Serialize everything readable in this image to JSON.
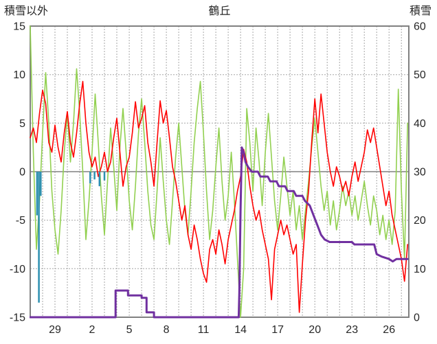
{
  "title": "鶴丘",
  "chart_data": {
    "type": "line",
    "title": "鶴丘",
    "left_axis": {
      "title": "積雪以外",
      "min": -15,
      "max": 15,
      "ticks": [
        15,
        10,
        5,
        0,
        -5,
        -10,
        -15
      ]
    },
    "right_axis": {
      "title": "積雪",
      "min": 0,
      "max": 60,
      "ticks": [
        60,
        50,
        40,
        30,
        20,
        10,
        0
      ]
    },
    "x_axis": {
      "min": 0,
      "max": 30.6,
      "gridline_every_days": 1,
      "tick_positions": [
        2,
        5,
        8,
        11,
        14,
        17,
        20,
        23,
        26,
        29
      ],
      "tick_labels": [
        "29",
        "2",
        "5",
        "8",
        "11",
        "14",
        "17",
        "20",
        "23",
        "26"
      ]
    },
    "colors": {
      "red": "#FF0000",
      "green": "#92D050",
      "purple": "#7030A0",
      "blue": "#2D8FB0",
      "grid": "#A6A6A6",
      "axis": "#808080",
      "text": "#262626"
    },
    "series": [
      {
        "id": "green_line",
        "axis": "left",
        "color_key": "green",
        "width": 1.6,
        "x_start": 0,
        "x_step": 0.25,
        "values": [
          15.0,
          2.0,
          -8.0,
          -3.0,
          4.0,
          10.2,
          5.0,
          -2.0,
          -6.0,
          -8.5,
          -4.0,
          2.0,
          6.0,
          1.0,
          5.0,
          10.6,
          6.0,
          0.0,
          -7.0,
          -3.0,
          2.0,
          8.0,
          3.0,
          -2.5,
          -6.5,
          -1.0,
          4.5,
          0.5,
          -4.0,
          2.5,
          6.5,
          2.0,
          -3.0,
          -6.0,
          -1.5,
          4.0,
          7.5,
          3.0,
          -2.0,
          -5.5,
          -7.0,
          -2.0,
          3.5,
          -1.0,
          -5.0,
          -7.5,
          -3.0,
          1.5,
          5.0,
          0.5,
          -4.0,
          -6.5,
          -2.0,
          3.0,
          6.5,
          9.3,
          4.0,
          -2.0,
          -7.0,
          -4.0,
          0.5,
          4.5,
          -1.0,
          -5.0,
          -2.5,
          2.0,
          -3.0,
          -9.0,
          -15.0,
          -10.0,
          6.5,
          3.0,
          -2.0,
          4.5,
          1.0,
          -3.5,
          2.0,
          6.0,
          1.5,
          -3.0,
          -6.0,
          -2.5,
          1.5,
          -1.5,
          -4.5,
          -2.0,
          -6.0,
          -3.5,
          -7.0,
          -4.0,
          -1.0,
          2.5,
          5.5,
          2.0,
          -1.5,
          -4.0,
          -2.0,
          -5.5,
          -3.0,
          -6.0,
          -4.0,
          -1.5,
          -3.5,
          -2.0,
          -4.5,
          -2.5,
          -5.0,
          -3.0,
          -1.0,
          -3.5,
          -5.5,
          -2.5,
          -4.0,
          -6.5,
          -4.5,
          -7.0,
          -5.0,
          -7.5,
          -4.0,
          8.5,
          -2.0,
          -9.0,
          5.0
        ]
      },
      {
        "id": "red_line",
        "axis": "left",
        "color_key": "red",
        "width": 1.6,
        "x_start": 0,
        "x_step": 0.25,
        "values": [
          3.5,
          4.5,
          3.0,
          6.0,
          8.4,
          7.0,
          3.0,
          2.0,
          4.8,
          2.5,
          1.0,
          4.0,
          6.2,
          3.0,
          1.5,
          4.0,
          7.0,
          9.3,
          5.0,
          2.0,
          0.5,
          1.5,
          -0.5,
          0.5,
          2.0,
          0.0,
          1.0,
          3.5,
          5.5,
          2.0,
          -1.5,
          0.5,
          1.5,
          4.0,
          7.2,
          4.5,
          5.5,
          6.8,
          3.0,
          1.0,
          -1.5,
          3.0,
          7.3,
          5.0,
          6.3,
          3.5,
          0.5,
          -1.0,
          -3.0,
          -5.0,
          -3.5,
          -6.5,
          -8.0,
          -5.5,
          -7.0,
          -9.0,
          -10.5,
          -11.4,
          -8.0,
          -7.0,
          -8.5,
          -6.0,
          -7.5,
          -9.5,
          -7.0,
          -5.5,
          -4.0,
          -2.0,
          -0.5,
          2.3,
          1.0,
          -1.5,
          -3.5,
          -5.0,
          -4.0,
          -6.0,
          -7.5,
          -9.0,
          -13.2,
          -8.0,
          -6.5,
          -5.0,
          -6.5,
          -5.5,
          -7.0,
          -8.5,
          -7.5,
          -14.5,
          -9.5,
          -5.0,
          -2.0,
          3.0,
          7.5,
          4.0,
          8.0,
          5.0,
          2.0,
          0.0,
          -1.5,
          0.5,
          -0.5,
          -2.0,
          -1.0,
          -2.5,
          -0.5,
          1.0,
          -1.0,
          0.5,
          2.0,
          4.3,
          3.0,
          4.5,
          2.5,
          0.5,
          -1.5,
          -3.5,
          -2.0,
          -4.5,
          -6.0,
          -7.5,
          -9.0,
          -11.3,
          -7.5
        ]
      },
      {
        "id": "purple_step_line",
        "axis": "right",
        "color_key": "purple",
        "width": 3,
        "points": [
          [
            0,
            0
          ],
          [
            6.9,
            0
          ],
          [
            6.9,
            5.5
          ],
          [
            7.9,
            5.5
          ],
          [
            7.9,
            4.5
          ],
          [
            9.0,
            4.5
          ],
          [
            9.0,
            4.0
          ],
          [
            9.4,
            4.0
          ],
          [
            9.4,
            1.0
          ],
          [
            10.0,
            1.0
          ],
          [
            10.0,
            0
          ],
          [
            16.85,
            0
          ],
          [
            16.9,
            5
          ],
          [
            17.0,
            22
          ],
          [
            17.1,
            35
          ],
          [
            17.25,
            34
          ],
          [
            17.4,
            32
          ],
          [
            17.6,
            31
          ],
          [
            17.9,
            30
          ],
          [
            18.4,
            30
          ],
          [
            18.6,
            29
          ],
          [
            19.2,
            29
          ],
          [
            19.4,
            28
          ],
          [
            19.9,
            28
          ],
          [
            20.1,
            27
          ],
          [
            20.6,
            27
          ],
          [
            20.8,
            26
          ],
          [
            21.3,
            26
          ],
          [
            21.5,
            25
          ],
          [
            22.0,
            25
          ],
          [
            22.2,
            24
          ],
          [
            22.6,
            23
          ],
          [
            22.9,
            21
          ],
          [
            23.2,
            19
          ],
          [
            23.5,
            17
          ],
          [
            23.8,
            16
          ],
          [
            24.2,
            15.5
          ],
          [
            26.0,
            15.5
          ],
          [
            26.2,
            15
          ],
          [
            27.8,
            15
          ],
          [
            28.0,
            13
          ],
          [
            28.4,
            12.5
          ],
          [
            29.0,
            12
          ],
          [
            29.3,
            11.5
          ],
          [
            29.6,
            12
          ],
          [
            30.5,
            12
          ]
        ]
      },
      {
        "id": "blue_bars",
        "axis": "left",
        "color_key": "blue",
        "width": 2.5,
        "bars": [
          [
            0.55,
            -4.5
          ],
          [
            0.7,
            -13.5
          ],
          [
            0.85,
            -2.5
          ],
          [
            4.85,
            -1.2
          ],
          [
            5.2,
            -0.8
          ],
          [
            5.6,
            -1.5
          ],
          [
            6.0,
            -0.9
          ]
        ]
      }
    ]
  }
}
